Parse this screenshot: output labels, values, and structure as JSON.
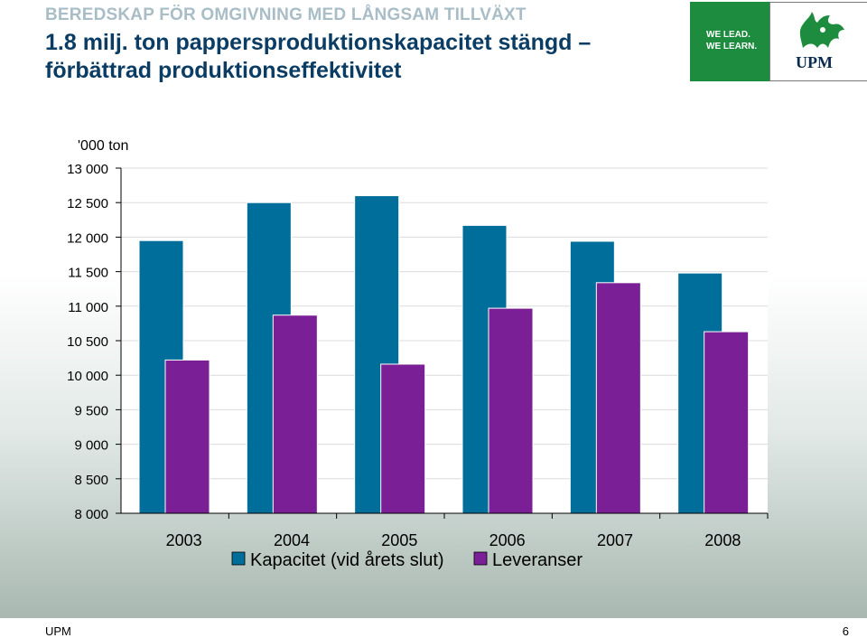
{
  "header": {
    "supertitle": "BEREDSKAP FÖR OMGIVNING MED LÅNGSAM TILLVÄXT",
    "title": "1.8 milj. ton pappersproduktionskapacitet stängd – förbättrad produktionseffektivitet"
  },
  "logo": {
    "slogan_line1": "WE LEAD.",
    "slogan_line2": "WE LEARN.",
    "wordmark": "UPM"
  },
  "footer": {
    "left": "UPM",
    "page_number": "6"
  },
  "colors": {
    "capacity": "#006e9a",
    "deliveries": "#7b1f96",
    "title": "#0a3c64",
    "supertitle": "#a9bdc7"
  },
  "chart_data": {
    "type": "bar",
    "unit_label": "'000 ton",
    "categories": [
      "2003",
      "2004",
      "2005",
      "2006",
      "2007",
      "2008"
    ],
    "ylim": [
      8000,
      13000
    ],
    "yticks": [
      8000,
      8500,
      9000,
      9500,
      10000,
      10500,
      11000,
      11500,
      12000,
      12500,
      13000
    ],
    "ytick_labels": [
      "8 000",
      "8 500",
      "9 000",
      "9 500",
      "10 000",
      "10 500",
      "11 000",
      "11 500",
      "12 000",
      "12 500",
      "13 000"
    ],
    "series": [
      {
        "name": "Kapacitet (vid årets slut)",
        "values": [
          11950,
          12500,
          12600,
          12170,
          11940,
          11480
        ]
      },
      {
        "name": "Leveranser",
        "values": [
          10220,
          10870,
          10160,
          10970,
          11340,
          10630
        ]
      }
    ],
    "legend_position": "bottom",
    "grid": true
  }
}
